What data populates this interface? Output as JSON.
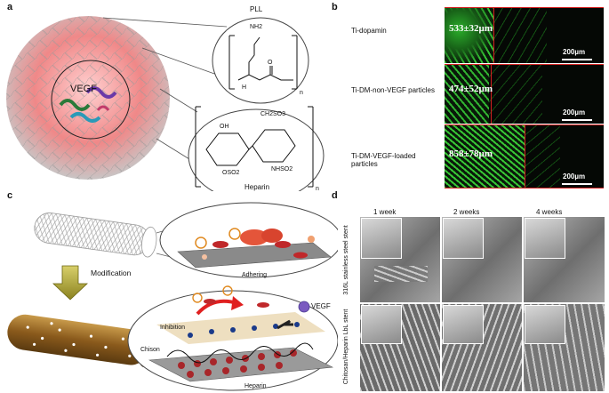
{
  "panels": {
    "a": {
      "label": "a",
      "core_label": "VEGF",
      "pll_label": "PLL",
      "heparin_label": "Heparin",
      "pll_struct": {
        "nh2": "NH2",
        "h": "H",
        "o": "O",
        "n": "n"
      },
      "heparin_struct": {
        "ch2so3": "CH2SO3",
        "oh": "OH",
        "oso2": "OSO2",
        "nhso2": "NHSO2",
        "n": "n"
      }
    },
    "b": {
      "label": "b",
      "rows": [
        {
          "name": "Ti-dopamin",
          "measurement": "533±32µm",
          "scale": "200µm"
        },
        {
          "name": "Ti-DM-non-VEGF particles",
          "measurement": "474±52µm",
          "scale": "200µm"
        },
        {
          "name": "Ti-DM-VEGF-loaded particles",
          "measurement": "858±78µm",
          "scale": "200µm"
        }
      ]
    },
    "c": {
      "label": "c",
      "modification_label": "Modification",
      "adhering_label": "Adhering",
      "inhibition_label": "Inhibition",
      "vegf_label": "VEGF",
      "chison_label": "Chison",
      "heparin_label": "Heparin"
    },
    "d": {
      "label": "d",
      "columns": [
        "1 week",
        "2 weeks",
        "4 weeks"
      ],
      "rows": [
        "316L stainless steel stent",
        "Chitosan/Heparin LbL stent"
      ]
    }
  },
  "colors": {
    "particle_pink": "#f28b8b",
    "fluorescence_green": "#3ddc3a",
    "stent_brown": "#8a5a1c",
    "arrow_olive": "#a9a030",
    "red_line": "#d42020"
  }
}
